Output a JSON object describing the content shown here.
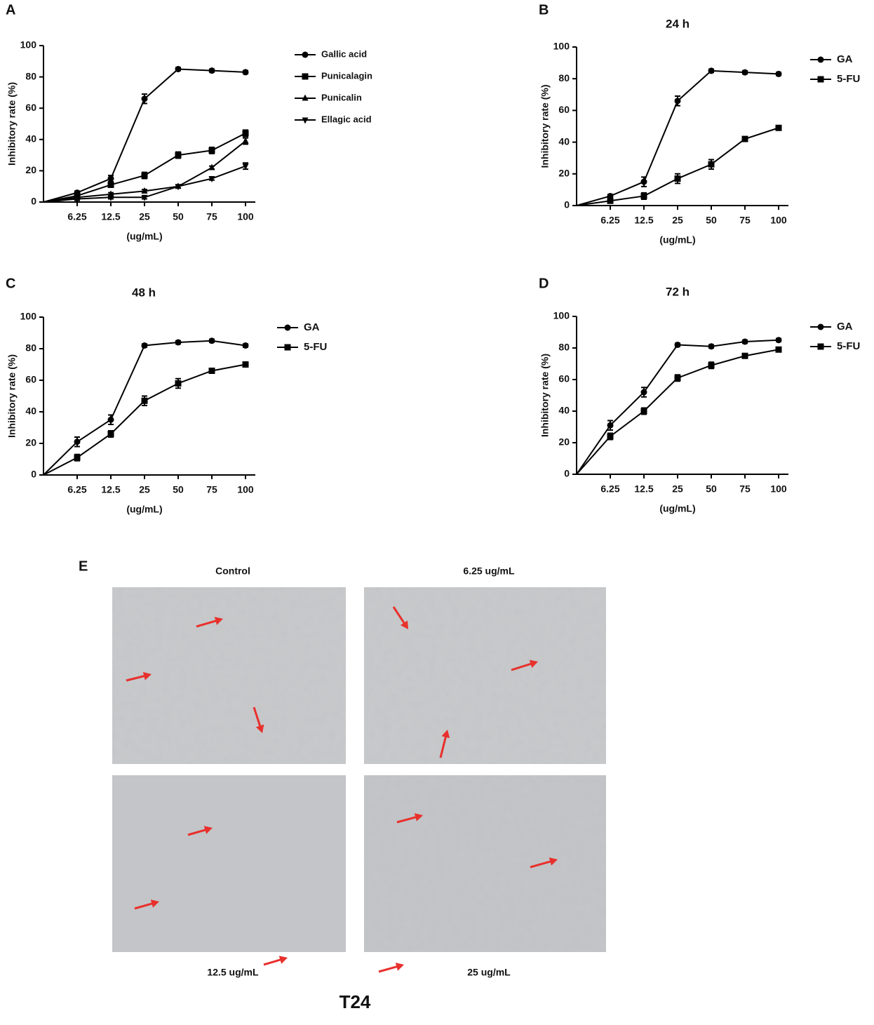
{
  "chart_data": [
    {
      "type": "line",
      "panel": "A",
      "ylabel": "Inhibitory rate (%)",
      "xlabel": "(ug/mL)",
      "categories": [
        null,
        "6.25",
        "12.5",
        "25",
        "50",
        "75",
        "100"
      ],
      "ylim": [
        0,
        100
      ],
      "yticks": [
        0,
        20,
        40,
        60,
        80,
        100
      ],
      "series": [
        {
          "name": "Gallic acid",
          "color": "#000000",
          "marker": "circle",
          "values": [
            0,
            6,
            15,
            66,
            85,
            84,
            83
          ],
          "errors": [
            0,
            1,
            2,
            3,
            1,
            1,
            1
          ]
        },
        {
          "name": "Punicalagin",
          "color": "#000000",
          "marker": "square",
          "values": [
            0,
            4,
            11,
            17,
            30,
            33,
            44
          ],
          "errors": [
            0,
            1,
            1,
            2,
            2,
            2,
            2
          ]
        },
        {
          "name": "Punicalin",
          "color": "#000000",
          "marker": "triangle",
          "values": [
            0,
            3,
            5,
            7,
            10,
            22,
            39
          ],
          "errors": [
            0,
            1,
            1,
            1,
            1,
            1,
            2
          ]
        },
        {
          "name": "Ellagic acid",
          "color": "#000000",
          "marker": "triangle-down",
          "values": [
            0,
            2,
            3,
            3,
            10,
            15,
            23
          ],
          "errors": [
            0,
            1,
            1,
            1,
            1,
            1,
            2
          ]
        }
      ]
    },
    {
      "type": "line",
      "panel": "B",
      "title": "24 h",
      "ylabel": "Inhibitory rate (%)",
      "xlabel": "(ug/mL)",
      "categories": [
        null,
        "6.25",
        "12.5",
        "25",
        "50",
        "75",
        "100"
      ],
      "ylim": [
        0,
        100
      ],
      "yticks": [
        0,
        20,
        40,
        60,
        80,
        100
      ],
      "series": [
        {
          "name": "GA",
          "color": "#000000",
          "marker": "circle",
          "values": [
            0,
            6,
            15,
            66,
            85,
            84,
            83
          ],
          "errors": [
            0,
            1,
            3,
            3,
            1,
            1,
            1
          ]
        },
        {
          "name": "5-FU",
          "color": "#000000",
          "marker": "square",
          "values": [
            0,
            3,
            6,
            17,
            26,
            42,
            49
          ],
          "errors": [
            0,
            1,
            2,
            3,
            3,
            1,
            1
          ]
        }
      ]
    },
    {
      "type": "line",
      "panel": "C",
      "title": "48 h",
      "ylabel": "Inhibitory rate (%)",
      "xlabel": "(ug/mL)",
      "categories": [
        null,
        "6.25",
        "12.5",
        "25",
        "50",
        "75",
        "100"
      ],
      "ylim": [
        0,
        100
      ],
      "yticks": [
        0,
        20,
        40,
        60,
        80,
        100
      ],
      "series": [
        {
          "name": "GA",
          "color": "#000000",
          "marker": "circle",
          "values": [
            0,
            21,
            35,
            82,
            84,
            85,
            82
          ],
          "errors": [
            0,
            3,
            3,
            1,
            1,
            1,
            1
          ]
        },
        {
          "name": "5-FU",
          "color": "#000000",
          "marker": "square",
          "values": [
            0,
            11,
            26,
            47,
            58,
            66,
            70
          ],
          "errors": [
            0,
            2,
            2,
            3,
            3,
            1,
            1
          ]
        }
      ]
    },
    {
      "type": "line",
      "panel": "D",
      "title": "72 h",
      "ylabel": "Inhibitory rate (%)",
      "xlabel": "(ug/mL)",
      "categories": [
        null,
        "6.25",
        "12.5",
        "25",
        "50",
        "75",
        "100"
      ],
      "ylim": [
        0,
        100
      ],
      "yticks": [
        0,
        20,
        40,
        60,
        80,
        100
      ],
      "series": [
        {
          "name": "GA",
          "color": "#000000",
          "marker": "circle",
          "values": [
            0,
            31,
            52,
            82,
            81,
            84,
            85
          ],
          "errors": [
            0,
            3,
            3,
            1,
            1,
            1,
            1
          ]
        },
        {
          "name": "5-FU",
          "color": "#000000",
          "marker": "square",
          "values": [
            0,
            24,
            40,
            61,
            69,
            75,
            79
          ],
          "errors": [
            0,
            2,
            2,
            2,
            2,
            1,
            1
          ]
        }
      ]
    }
  ],
  "panel_e": {
    "panel": "E",
    "images": [
      "Control",
      "6.25 ug/mL",
      "12.5 ug/mL",
      "25 ug/mL"
    ],
    "cell_line": "T24"
  }
}
